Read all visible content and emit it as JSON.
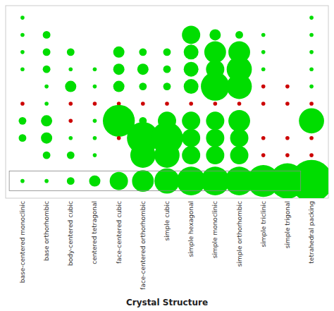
{
  "chart_data": {
    "type": "bubble",
    "xlabel": "Crystal Structure",
    "categories": [
      "base-centered monoclinic",
      "base orthorhombic",
      "body-centered cubic",
      "centered tetragonal",
      "face-centered cubic",
      "face-centered orthorhombic",
      "simple cubic",
      "simple hexagonal",
      "simple monoclinic",
      "simple orthorhombic",
      "simple triclinic",
      "simple trigonal",
      "tetrahedral packing"
    ],
    "x": [
      "base-centered monoclinic",
      "tetrahedral packing",
      "base-centered monoclinic",
      "base orthorhombic",
      "simple hexagonal",
      "simple monoclinic",
      "simple orthorhombic",
      "simple triclinic",
      "tetrahedral packing",
      "base-centered monoclinic",
      "base orthorhombic",
      "body-centered cubic",
      "face-centered cubic",
      "face-centered orthorhombic",
      "simple cubic",
      "simple hexagonal",
      "simple monoclinic",
      "simple orthorhombic",
      "simple triclinic",
      "tetrahedral packing",
      "base-centered monoclinic",
      "base orthorhombic",
      "body-centered cubic",
      "centered tetragonal",
      "face-centered cubic",
      "face-centered orthorhombic",
      "simple cubic",
      "simple hexagonal",
      "simple monoclinic",
      "simple orthorhombic",
      "simple triclinic",
      "tetrahedral packing",
      "base orthorhombic",
      "body-centered cubic",
      "centered tetragonal",
      "face-centered cubic",
      "face-centered orthorhombic",
      "simple cubic",
      "simple hexagonal",
      "simple monoclinic",
      "simple orthorhombic",
      "simple triclinic",
      "simple trigonal",
      "tetrahedral packing",
      "base-centered monoclinic",
      "base orthorhombic",
      "body-centered cubic",
      "centered tetragonal",
      "face-centered cubic",
      "face-centered orthorhombic",
      "simple cubic",
      "simple hexagonal",
      "simple monoclinic",
      "simple orthorhombic",
      "simple triclinic",
      "simple trigonal",
      "tetrahedral packing",
      "base-centered monoclinic",
      "base orthorhombic",
      "body-centered cubic",
      "centered tetragonal",
      "face-centered cubic",
      "face-centered orthorhombic",
      "simple cubic",
      "simple hexagonal",
      "simple monoclinic",
      "simple orthorhombic",
      "tetrahedral packing",
      "base-centered monoclinic",
      "base orthorhombic",
      "body-centered cubic",
      "centered tetragonal",
      "face-centered cubic",
      "face-centered orthorhombic",
      "simple cubic",
      "simple hexagonal",
      "simple monoclinic",
      "simple orthorhombic",
      "simple triclinic",
      "simple trigonal",
      "tetrahedral packing",
      "base orthorhombic",
      "body-centered cubic",
      "centered tetragonal",
      "face-centered orthorhombic",
      "simple cubic",
      "simple hexagonal",
      "simple monoclinic",
      "simple orthorhombic",
      "simple triclinic",
      "simple trigonal",
      "tetrahedral packing"
    ],
    "y": [
      0,
      0,
      1,
      1,
      1,
      1,
      1,
      1,
      1,
      2,
      2,
      2,
      2,
      2,
      2,
      2,
      2,
      2,
      2,
      2,
      3,
      3,
      3,
      3,
      3,
      3,
      3,
      3,
      3,
      3,
      3,
      3,
      4,
      4,
      4,
      4,
      4,
      4,
      4,
      4,
      4,
      4,
      4,
      4,
      5,
      5,
      5,
      5,
      5,
      5,
      5,
      5,
      5,
      5,
      5,
      5,
      5,
      6,
      6,
      6,
      6,
      6,
      6,
      6,
      6,
      6,
      6,
      6,
      7,
      7,
      7,
      7,
      7,
      7,
      7,
      7,
      7,
      7,
      7,
      7,
      7,
      8,
      8,
      8,
      8,
      8,
      8,
      8,
      8,
      8,
      8,
      8
    ],
    "sizes": [
      1,
      1,
      1,
      2,
      5,
      3,
      2,
      1,
      1,
      1,
      2,
      2,
      3,
      2,
      2,
      4,
      6,
      6,
      1,
      1,
      1,
      2,
      1,
      1,
      3,
      3,
      2,
      4,
      5,
      7,
      1,
      1,
      1,
      3,
      1,
      3,
      2,
      2,
      4,
      8,
      7,
      1,
      1,
      1,
      1,
      1,
      1,
      1,
      1,
      1,
      1,
      1,
      1,
      1,
      1,
      1,
      1,
      2,
      3,
      1,
      1,
      9,
      2,
      5,
      5,
      5,
      6,
      7,
      2,
      3,
      1,
      1,
      1,
      9,
      9,
      5,
      5,
      5,
      1,
      1,
      1,
      2,
      2,
      1,
      7,
      7,
      5,
      5,
      5,
      1,
      1,
      1
    ],
    "colors": [
      "#00dd00",
      "#00dd00",
      "#00dd00",
      "#00dd00",
      "#00dd00",
      "#00dd00",
      "#00dd00",
      "#00dd00",
      "#00dd00",
      "#00dd00",
      "#00dd00",
      "#00dd00",
      "#00dd00",
      "#00dd00",
      "#00dd00",
      "#00dd00",
      "#00dd00",
      "#00dd00",
      "#00dd00",
      "#00dd00",
      "#00dd00",
      "#00dd00",
      "#00dd00",
      "#00dd00",
      "#00dd00",
      "#00dd00",
      "#00dd00",
      "#00dd00",
      "#00dd00",
      "#00dd00",
      "#00dd00",
      "#00dd00",
      "#00dd00",
      "#00dd00",
      "#00dd00",
      "#00dd00",
      "#00dd00",
      "#00dd00",
      "#00dd00",
      "#00dd00",
      "#00dd00",
      "#cc0000",
      "#cc0000",
      "#00dd00",
      "#cc0000",
      "#00dd00",
      "#cc0000",
      "#cc0000",
      "#cc0000",
      "#cc0000",
      "#cc0000",
      "#cc0000",
      "#cc0000",
      "#cc0000",
      "#cc0000",
      "#cc0000",
      "#cc0000",
      "#00dd00",
      "#00dd00",
      "#cc0000",
      "#00dd00",
      "#00dd00",
      "#00dd00",
      "#00dd00",
      "#00dd00",
      "#00dd00",
      "#00dd00",
      "#00dd00",
      "#00dd00",
      "#00dd00",
      "#00dd00",
      "#00dd00",
      "#cc0000",
      "#00dd00",
      "#00dd00",
      "#00dd00",
      "#00dd00",
      "#00dd00",
      "#cc0000",
      "#cc0000",
      "#cc0000",
      "#00dd00",
      "#00dd00",
      "#00dd00",
      "#00dd00",
      "#00dd00",
      "#00dd00",
      "#00dd00",
      "#00dd00",
      "#cc0000",
      "#cc0000",
      "#cc0000"
    ],
    "legend_sizes": [
      1,
      1,
      2,
      3,
      5,
      6,
      7,
      8,
      8,
      8,
      9,
      10,
      12
    ],
    "color": "#00dd00",
    "ylim": [
      10.5,
      -0.7
    ],
    "tick_labels": "x",
    "grid": false
  }
}
